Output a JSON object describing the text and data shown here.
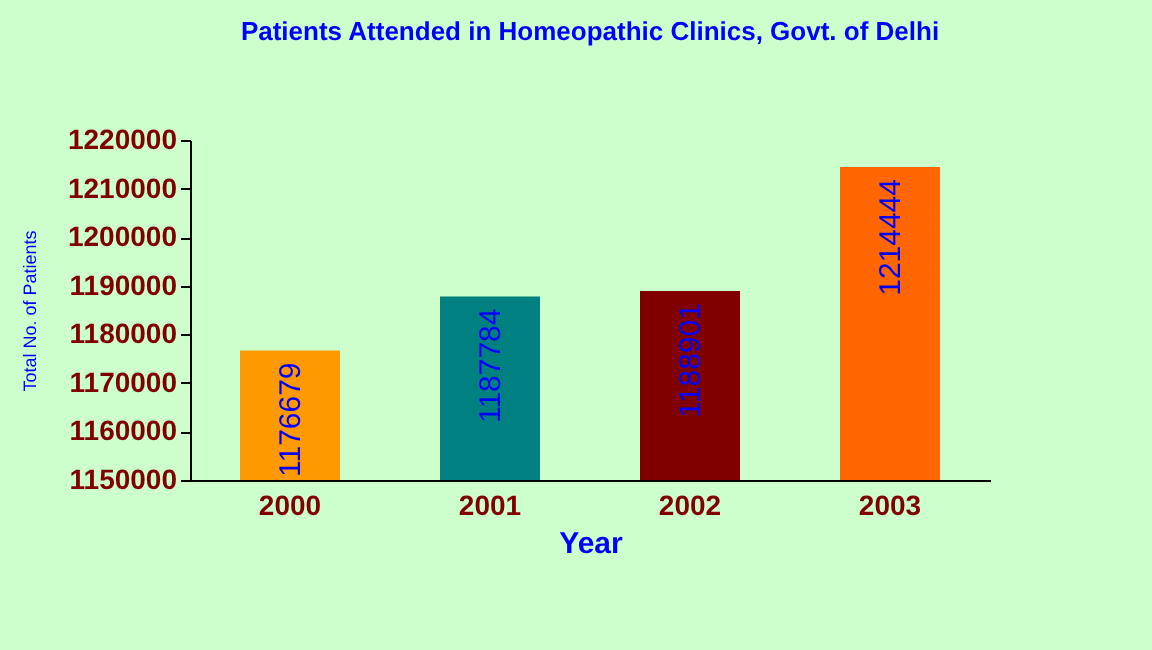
{
  "chart_data": {
    "type": "bar",
    "title": "Patients Attended in Homeopathic Clinics, Govt. of Delhi",
    "xlabel": "Year",
    "ylabel": "Total No. of Patients",
    "categories": [
      "2000",
      "2001",
      "2002",
      "2003"
    ],
    "values": [
      1176679,
      1187784,
      1188901,
      1214444
    ],
    "colors": [
      "#ff9900",
      "#008080",
      "#800000",
      "#ff6600"
    ],
    "ylim": [
      1150000,
      1220000
    ],
    "yticks": [
      1150000,
      1160000,
      1170000,
      1180000,
      1190000,
      1200000,
      1210000,
      1220000
    ],
    "grid": false,
    "legend": false,
    "data_labels": true
  }
}
